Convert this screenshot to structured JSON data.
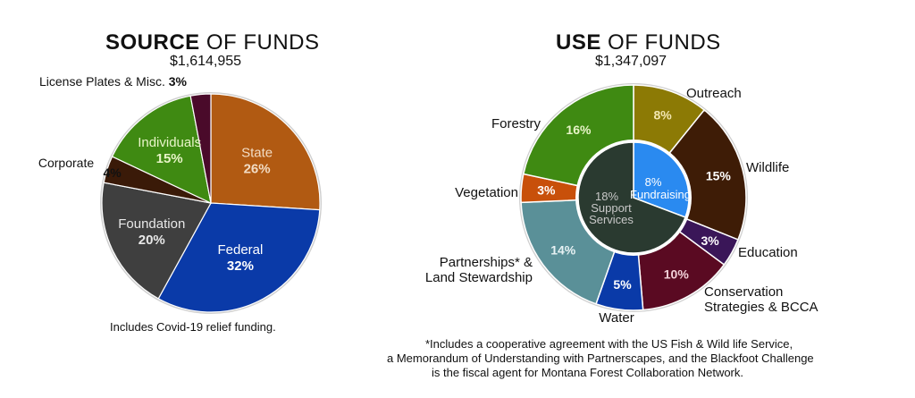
{
  "chart_data": [
    {
      "type": "pie",
      "title": {
        "bold": "SOURCE",
        "rest": " OF FUNDS"
      },
      "total": "$1,614,955",
      "note": "Includes Covid-19 relief funding.",
      "slices": [
        {
          "label": "State",
          "pct_text": "26%",
          "value": 26,
          "color": "#b15a12",
          "text_color": "#f2dcc4"
        },
        {
          "label": "Federal",
          "pct_text": "32%",
          "value": 32,
          "color": "#0a3aa8",
          "text_color": "#ffffff"
        },
        {
          "label": "Foundation",
          "pct_text": "20%",
          "value": 20,
          "color": "#3f3f3f",
          "text_color": "#e8e8e8"
        },
        {
          "label": "Corporate",
          "pct_text": "4%",
          "value": 4,
          "color": "#3a1a08",
          "text_color": "#111111"
        },
        {
          "label": "Individuals",
          "pct_text": "15%",
          "value": 15,
          "color": "#3f8a12",
          "text_color": "#e8f4c8"
        },
        {
          "label": "License Plates & Misc.",
          "pct_text": "3%",
          "value": 3,
          "color": "#4a0a2a",
          "text_color": "#111111"
        }
      ]
    },
    {
      "type": "pie",
      "title": {
        "bold": "USE",
        "rest": " OF FUNDS"
      },
      "total": "$1,347,097",
      "note_lines": [
        "*Includes a cooperative agreement with the US Fish & Wild life Service,",
        "a Memorandum of Understanding with Partnerscapes, and the Blackfoot Challenge",
        "is the fiscal agent for Montana Forest Collaboration Network."
      ],
      "slices": [
        {
          "label": "Outreach",
          "pct_text": "8%",
          "value": 8,
          "color": "#8c7a05"
        },
        {
          "label": "Wildlife",
          "pct_text": "15%",
          "value": 15,
          "color": "#3e1c06"
        },
        {
          "label": "Education",
          "pct_text": "3%",
          "value": 3,
          "color": "#3a1658"
        },
        {
          "label": "Conservation Strategies & BCCA",
          "pct_text": "10%",
          "value": 10,
          "color": "#5a0a22"
        },
        {
          "label": "Water",
          "pct_text": "5%",
          "value": 5,
          "color": "#0a3aa8"
        },
        {
          "label": "Partnerships* & Land Stewardship",
          "pct_text": "14%",
          "value": 14,
          "color": "#5a9098"
        },
        {
          "label": "Vegetation",
          "pct_text": "3%",
          "value": 3,
          "color": "#c8500a"
        },
        {
          "label": "Forestry",
          "pct_text": "16%",
          "value": 16,
          "color": "#3f8a12"
        }
      ],
      "inner": [
        {
          "label": "Fundraising",
          "pct_text": "8%",
          "value": 8,
          "color": "#2a8af0"
        },
        {
          "label": "Support Services",
          "pct_text": "18%",
          "value": 18,
          "color": "#2a3a30"
        }
      ]
    }
  ]
}
